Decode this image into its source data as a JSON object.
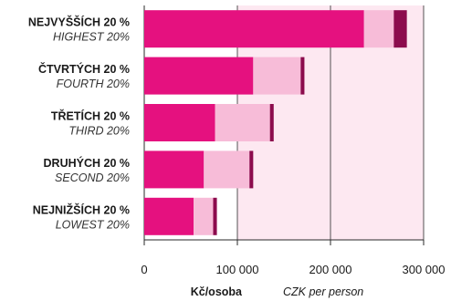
{
  "chart_data": {
    "type": "bar",
    "orientation": "horizontal",
    "stacked": true,
    "categories": [
      {
        "label": "NEJVYŠŠÍCH 20 %",
        "sublabel": "HIGHEST 20%"
      },
      {
        "label": "ČTVRTÝCH 20 %",
        "sublabel": "FOURTH 20%"
      },
      {
        "label": "TŘETÍCH 20 %",
        "sublabel": "THIRD 20%"
      },
      {
        "label": "DRUHÝCH 20 %",
        "sublabel": "SECOND 20%"
      },
      {
        "label": "NEJNIŽŠÍCH 20 %",
        "sublabel": "LOWEST 20%"
      }
    ],
    "series": [
      {
        "color": "#e5117f",
        "values": [
          236000,
          117000,
          76000,
          64000,
          53000
        ]
      },
      {
        "color": "#f7bcd8",
        "values": [
          32000,
          51000,
          59000,
          49000,
          21000
        ]
      },
      {
        "color": "#8c0b4d",
        "values": [
          14000,
          4000,
          4000,
          4000,
          4000
        ]
      }
    ],
    "xlim": [
      0,
      300000
    ],
    "xticks": [
      0,
      100000,
      200000,
      300000
    ],
    "xtick_labels": [
      "0",
      "100 000",
      "200 000",
      "300 000"
    ],
    "xlabel": "Kč/osoba",
    "xlabel_sub": "CZK per person",
    "plot_background": "#fde8f1",
    "grid": true
  }
}
